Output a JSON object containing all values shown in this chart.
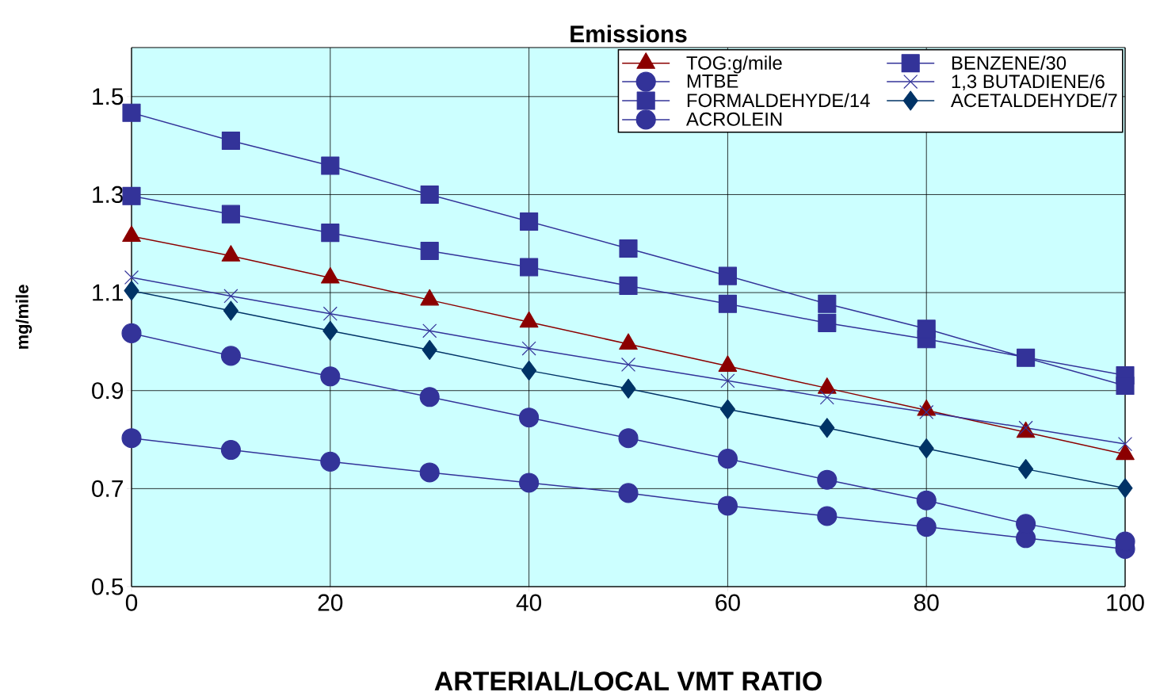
{
  "chart_data": {
    "type": "line",
    "title": "Emissions",
    "xlabel": "ARTERIAL/LOCAL VMT RATIO",
    "ylabel": "mg/mile",
    "x": [
      0,
      10,
      20,
      30,
      40,
      50,
      60,
      70,
      80,
      90,
      100
    ],
    "xlim": [
      0,
      100
    ],
    "xticks": [
      0,
      20,
      40,
      60,
      80,
      100
    ],
    "ylim": [
      0.5,
      1.6
    ],
    "yticks": [
      0.5,
      0.7,
      0.9,
      1.1,
      1.3,
      1.5
    ],
    "grid": true,
    "legend": "top right",
    "line_style": "solid",
    "series": [
      {
        "name": "TOG:g/mile",
        "color": "#8b0000",
        "marker": "triangle",
        "values": [
          1.215,
          1.175,
          1.13,
          1.085,
          1.04,
          0.995,
          0.95,
          0.905,
          0.86,
          0.815,
          0.77
        ]
      },
      {
        "name": "BENZENE/30",
        "color": "#333399",
        "marker": "square",
        "values": [
          1.297,
          1.26,
          1.222,
          1.185,
          1.152,
          1.114,
          1.077,
          1.038,
          1.005,
          null,
          0.931
        ]
      },
      {
        "name": "MTBE",
        "color": "#333399",
        "marker": "circle",
        "values": [
          0.803,
          0.779,
          0.755,
          0.733,
          0.712,
          0.691,
          0.665,
          0.644,
          0.622,
          0.599,
          0.577
        ]
      },
      {
        "name": "1,3 BUTADIENE/6",
        "color": "#333399",
        "marker": "cross",
        "values": [
          1.131,
          1.093,
          1.057,
          1.022,
          0.986,
          0.953,
          0.92,
          0.886,
          0.856,
          0.824,
          0.791
        ]
      },
      {
        "name": "FORMALDEHYDE/14",
        "color": "#333399",
        "marker": "square",
        "values": [
          1.467,
          1.41,
          1.359,
          1.3,
          1.245,
          1.19,
          1.134,
          1.077,
          1.026,
          0.967,
          0.91
        ]
      },
      {
        "name": "ACETALDEHYDE/7",
        "color": "#003366",
        "marker": "diamond",
        "values": [
          1.104,
          1.063,
          1.022,
          0.983,
          0.941,
          0.904,
          0.862,
          0.824,
          0.782,
          0.74,
          0.701
        ]
      },
      {
        "name": "ACROLEIN",
        "color": "#333399",
        "marker": "circle",
        "values": [
          1.017,
          0.971,
          0.929,
          0.887,
          0.845,
          0.803,
          0.761,
          0.718,
          0.676,
          0.628,
          0.592
        ]
      }
    ]
  }
}
